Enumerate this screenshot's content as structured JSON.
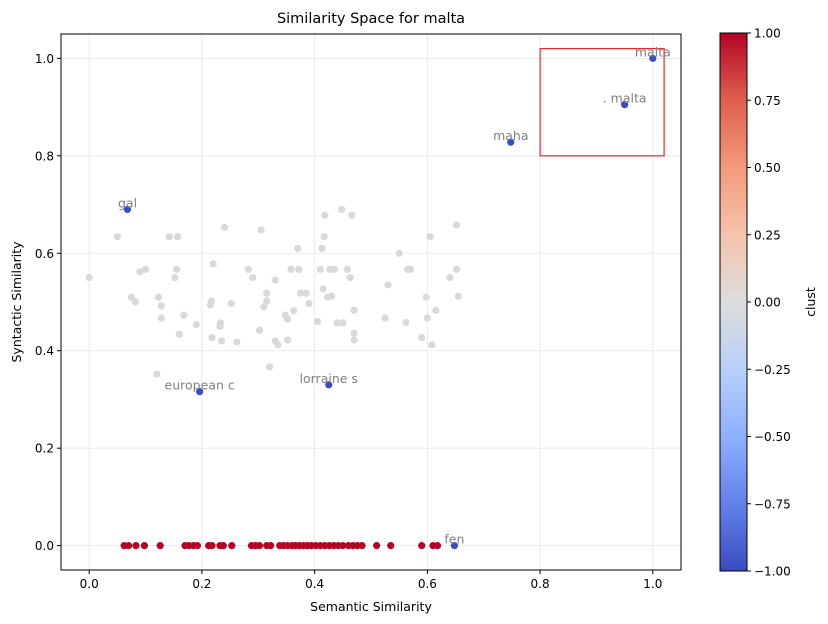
{
  "chart_data": {
    "type": "scatter",
    "title": "Similarity Space for malta",
    "xlabel": "Semantic Similarity",
    "ylabel": "Syntactic Similarity",
    "xlim": [
      -0.05,
      1.05
    ],
    "ylim": [
      -0.05,
      1.05
    ],
    "x_ticks": [
      0.0,
      0.2,
      0.4,
      0.6,
      0.8,
      1.0
    ],
    "y_ticks": [
      0.0,
      0.2,
      0.4,
      0.6,
      0.8,
      1.0
    ],
    "x_tick_labels": [
      "0.0",
      "0.2",
      "0.4",
      "0.6",
      "0.8",
      "1.0"
    ],
    "y_tick_labels": [
      "0.0",
      "0.2",
      "0.4",
      "0.6",
      "0.8",
      "1.0"
    ],
    "grid": true,
    "highlight_box": {
      "x0": 0.8,
      "x1": 1.02,
      "y0": 0.8,
      "y1": 1.02,
      "color": "#e8252a"
    },
    "colorbar": {
      "label": "clust",
      "range": [
        -1.0,
        1.0
      ],
      "ticks": [
        -1.0,
        -0.75,
        -0.5,
        -0.25,
        0.0,
        0.25,
        0.5,
        0.75,
        1.0
      ],
      "tick_labels": [
        "−1.00",
        "−0.75",
        "−0.50",
        "−0.25",
        "0.00",
        "0.25",
        "0.50",
        "0.75",
        "1.00"
      ],
      "colormap": "coolwarm",
      "colors": [
        "#3b4cc0",
        "#6282ea",
        "#8db0fe",
        "#b8d0f9",
        "#dddddd",
        "#f5c4ac",
        "#f49a7b",
        "#de604d",
        "#b40426"
      ]
    },
    "colors": {
      "cluster_minus1": "#3b4cc0",
      "cluster_0": "#d9d9d9",
      "cluster_1": "#b40426",
      "annotation": "#808080"
    },
    "series": [
      {
        "cluster": -1,
        "points": [
          {
            "x": 1.0,
            "y": 1.0,
            "label": "malta"
          },
          {
            "x": 0.95,
            "y": 0.905,
            "label": ". malta"
          },
          {
            "x": 0.748,
            "y": 0.828,
            "label": "maha"
          },
          {
            "x": 0.068,
            "y": 0.69,
            "label": "gal"
          },
          {
            "x": 0.196,
            "y": 0.316,
            "label": "european c"
          },
          {
            "x": 0.425,
            "y": 0.33,
            "label": "lorraine s"
          },
          {
            "x": 0.648,
            "y": 0.0,
            "label": "fen"
          }
        ]
      },
      {
        "cluster": 0,
        "points": [
          {
            "x": 0.0,
            "y": 0.55
          },
          {
            "x": 0.05,
            "y": 0.634
          },
          {
            "x": 0.075,
            "y": 0.51
          },
          {
            "x": 0.082,
            "y": 0.5
          },
          {
            "x": 0.09,
            "y": 0.562
          },
          {
            "x": 0.1,
            "y": 0.567
          },
          {
            "x": 0.12,
            "y": 0.352
          },
          {
            "x": 0.123,
            "y": 0.51
          },
          {
            "x": 0.128,
            "y": 0.492
          },
          {
            "x": 0.128,
            "y": 0.467
          },
          {
            "x": 0.142,
            "y": 0.634
          },
          {
            "x": 0.152,
            "y": 0.55
          },
          {
            "x": 0.155,
            "y": 0.567
          },
          {
            "x": 0.157,
            "y": 0.634
          },
          {
            "x": 0.16,
            "y": 0.434
          },
          {
            "x": 0.168,
            "y": 0.473
          },
          {
            "x": 0.19,
            "y": 0.454
          },
          {
            "x": 0.215,
            "y": 0.494
          },
          {
            "x": 0.217,
            "y": 0.502
          },
          {
            "x": 0.218,
            "y": 0.427
          },
          {
            "x": 0.22,
            "y": 0.578
          },
          {
            "x": 0.232,
            "y": 0.45
          },
          {
            "x": 0.233,
            "y": 0.457
          },
          {
            "x": 0.235,
            "y": 0.42
          },
          {
            "x": 0.24,
            "y": 0.653
          },
          {
            "x": 0.252,
            "y": 0.497
          },
          {
            "x": 0.262,
            "y": 0.418
          },
          {
            "x": 0.282,
            "y": 0.567
          },
          {
            "x": 0.29,
            "y": 0.55
          },
          {
            "x": 0.302,
            "y": 0.442
          },
          {
            "x": 0.305,
            "y": 0.648
          },
          {
            "x": 0.31,
            "y": 0.49
          },
          {
            "x": 0.315,
            "y": 0.502
          },
          {
            "x": 0.315,
            "y": 0.518
          },
          {
            "x": 0.32,
            "y": 0.367
          },
          {
            "x": 0.33,
            "y": 0.545
          },
          {
            "x": 0.33,
            "y": 0.42
          },
          {
            "x": 0.335,
            "y": 0.412
          },
          {
            "x": 0.348,
            "y": 0.473
          },
          {
            "x": 0.352,
            "y": 0.465
          },
          {
            "x": 0.352,
            "y": 0.422
          },
          {
            "x": 0.358,
            "y": 0.567
          },
          {
            "x": 0.363,
            "y": 0.482
          },
          {
            "x": 0.37,
            "y": 0.61
          },
          {
            "x": 0.372,
            "y": 0.567
          },
          {
            "x": 0.375,
            "y": 0.518
          },
          {
            "x": 0.385,
            "y": 0.518
          },
          {
            "x": 0.39,
            "y": 0.497
          },
          {
            "x": 0.405,
            "y": 0.46
          },
          {
            "x": 0.41,
            "y": 0.567
          },
          {
            "x": 0.413,
            "y": 0.61
          },
          {
            "x": 0.415,
            "y": 0.527
          },
          {
            "x": 0.417,
            "y": 0.634
          },
          {
            "x": 0.418,
            "y": 0.678
          },
          {
            "x": 0.423,
            "y": 0.51
          },
          {
            "x": 0.427,
            "y": 0.567
          },
          {
            "x": 0.43,
            "y": 0.512
          },
          {
            "x": 0.435,
            "y": 0.567
          },
          {
            "x": 0.44,
            "y": 0.457
          },
          {
            "x": 0.448,
            "y": 0.69
          },
          {
            "x": 0.45,
            "y": 0.457
          },
          {
            "x": 0.458,
            "y": 0.567
          },
          {
            "x": 0.463,
            "y": 0.55
          },
          {
            "x": 0.466,
            "y": 0.678
          },
          {
            "x": 0.47,
            "y": 0.483
          },
          {
            "x": 0.47,
            "y": 0.436
          },
          {
            "x": 0.47,
            "y": 0.422
          },
          {
            "x": 0.525,
            "y": 0.467
          },
          {
            "x": 0.53,
            "y": 0.535
          },
          {
            "x": 0.55,
            "y": 0.6
          },
          {
            "x": 0.562,
            "y": 0.458
          },
          {
            "x": 0.565,
            "y": 0.567
          },
          {
            "x": 0.57,
            "y": 0.567
          },
          {
            "x": 0.59,
            "y": 0.427
          },
          {
            "x": 0.598,
            "y": 0.51
          },
          {
            "x": 0.6,
            "y": 0.467
          },
          {
            "x": 0.605,
            "y": 0.634
          },
          {
            "x": 0.608,
            "y": 0.412
          },
          {
            "x": 0.615,
            "y": 0.483
          },
          {
            "x": 0.64,
            "y": 0.55
          },
          {
            "x": 0.652,
            "y": 0.567
          },
          {
            "x": 0.652,
            "y": 0.658
          },
          {
            "x": 0.655,
            "y": 0.512
          }
        ]
      },
      {
        "cluster": 1,
        "points": [
          {
            "x": 0.062,
            "y": 0.0
          },
          {
            "x": 0.07,
            "y": 0.0
          },
          {
            "x": 0.083,
            "y": 0.0
          },
          {
            "x": 0.098,
            "y": 0.0
          },
          {
            "x": 0.126,
            "y": 0.0
          },
          {
            "x": 0.17,
            "y": 0.0
          },
          {
            "x": 0.177,
            "y": 0.0
          },
          {
            "x": 0.185,
            "y": 0.0
          },
          {
            "x": 0.192,
            "y": 0.0
          },
          {
            "x": 0.212,
            "y": 0.0
          },
          {
            "x": 0.218,
            "y": 0.0
          },
          {
            "x": 0.232,
            "y": 0.0
          },
          {
            "x": 0.238,
            "y": 0.0
          },
          {
            "x": 0.253,
            "y": 0.0
          },
          {
            "x": 0.288,
            "y": 0.0
          },
          {
            "x": 0.295,
            "y": 0.0
          },
          {
            "x": 0.302,
            "y": 0.0
          },
          {
            "x": 0.315,
            "y": 0.0
          },
          {
            "x": 0.322,
            "y": 0.0
          },
          {
            "x": 0.338,
            "y": 0.0
          },
          {
            "x": 0.345,
            "y": 0.0
          },
          {
            "x": 0.352,
            "y": 0.0
          },
          {
            "x": 0.36,
            "y": 0.0
          },
          {
            "x": 0.366,
            "y": 0.0
          },
          {
            "x": 0.373,
            "y": 0.0
          },
          {
            "x": 0.38,
            "y": 0.0
          },
          {
            "x": 0.387,
            "y": 0.0
          },
          {
            "x": 0.394,
            "y": 0.0
          },
          {
            "x": 0.402,
            "y": 0.0
          },
          {
            "x": 0.41,
            "y": 0.0
          },
          {
            "x": 0.418,
            "y": 0.0
          },
          {
            "x": 0.426,
            "y": 0.0
          },
          {
            "x": 0.434,
            "y": 0.0
          },
          {
            "x": 0.442,
            "y": 0.0
          },
          {
            "x": 0.45,
            "y": 0.0
          },
          {
            "x": 0.46,
            "y": 0.0
          },
          {
            "x": 0.468,
            "y": 0.0
          },
          {
            "x": 0.476,
            "y": 0.0
          },
          {
            "x": 0.484,
            "y": 0.0
          },
          {
            "x": 0.51,
            "y": 0.0
          },
          {
            "x": 0.535,
            "y": 0.0
          },
          {
            "x": 0.59,
            "y": 0.0
          },
          {
            "x": 0.61,
            "y": 0.0
          },
          {
            "x": 0.618,
            "y": 0.0
          }
        ]
      }
    ]
  }
}
